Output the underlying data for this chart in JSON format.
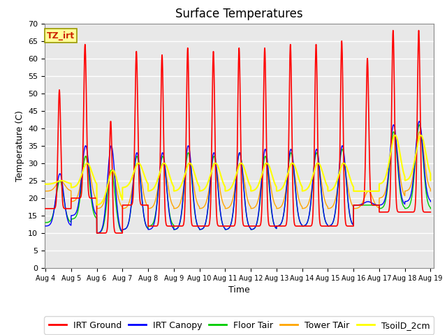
{
  "title": "Surface Temperatures",
  "xlabel": "Time",
  "ylabel": "Temperature (C)",
  "ylim": [
    0,
    70
  ],
  "yticks": [
    0,
    5,
    10,
    15,
    20,
    25,
    30,
    35,
    40,
    45,
    50,
    55,
    60,
    65,
    70
  ],
  "xlim_days": [
    4,
    19
  ],
  "xtick_labels": [
    "Aug 4",
    "Aug 5",
    "Aug 6",
    "Aug 7",
    "Aug 8",
    "Aug 9",
    "Aug 10",
    "Aug 11",
    "Aug 12",
    "Aug 13",
    "Aug 14",
    "Aug 15",
    "Aug 16",
    "Aug 17",
    "Aug 18",
    "Aug 19"
  ],
  "series": {
    "IRT Ground": {
      "color": "#ff0000",
      "lw": 1.2
    },
    "IRT Canopy": {
      "color": "#0000ff",
      "lw": 1.0
    },
    "Floor Tair": {
      "color": "#00cc00",
      "lw": 1.0
    },
    "Tower TAir": {
      "color": "#ffa500",
      "lw": 1.0
    },
    "TsoilD_2cm": {
      "color": "#ffff00",
      "lw": 1.5
    }
  },
  "annotation_label": "TZ_irt",
  "plot_bg": "#e8e8e8",
  "fig_bg": "#ffffff",
  "title_fontsize": 12,
  "axis_fontsize": 9,
  "tick_fontsize": 8,
  "legend_fontsize": 9,
  "grid_color": "#ffffff",
  "grid_lw": 1.0,
  "irt_ground_peaks": [
    51,
    64,
    42,
    62,
    61,
    63,
    62,
    63,
    63,
    64,
    64,
    65,
    60,
    68,
    68,
    65
  ],
  "irt_ground_mins": [
    17,
    20,
    10,
    18,
    12,
    12,
    12,
    12,
    12,
    12,
    12,
    12,
    18,
    16,
    16,
    19
  ],
  "irt_canopy_peaks": [
    27,
    35,
    35,
    33,
    33,
    35,
    33,
    33,
    34,
    34,
    34,
    35,
    19,
    41,
    42,
    42
  ],
  "irt_canopy_mins": [
    12,
    15,
    10,
    11,
    11,
    11,
    11,
    11,
    11,
    12,
    12,
    12,
    18,
    18,
    19,
    19
  ],
  "floor_peaks": [
    25,
    32,
    28,
    32,
    32,
    33,
    32,
    33,
    32,
    33,
    33,
    34,
    18,
    39,
    41,
    41
  ],
  "floor_mins": [
    13,
    14,
    10,
    11,
    12,
    11,
    11,
    11,
    11,
    12,
    12,
    12,
    18,
    17,
    17,
    18
  ],
  "tower_peaks": [
    25,
    32,
    28,
    30,
    30,
    30,
    30,
    30,
    30,
    30,
    30,
    30,
    22,
    38,
    39,
    39
  ],
  "tower_mins": [
    22,
    19,
    17,
    17,
    17,
    17,
    17,
    17,
    17,
    17,
    17,
    17,
    17,
    20,
    22,
    20
  ],
  "soil_peaks": [
    25,
    30,
    28,
    30,
    30,
    30,
    30,
    30,
    30,
    30,
    30,
    30,
    22,
    38,
    38,
    39
  ],
  "soil_mins": [
    24,
    23,
    18,
    23,
    22,
    22,
    22,
    22,
    22,
    22,
    22,
    22,
    22,
    24,
    25,
    20
  ]
}
